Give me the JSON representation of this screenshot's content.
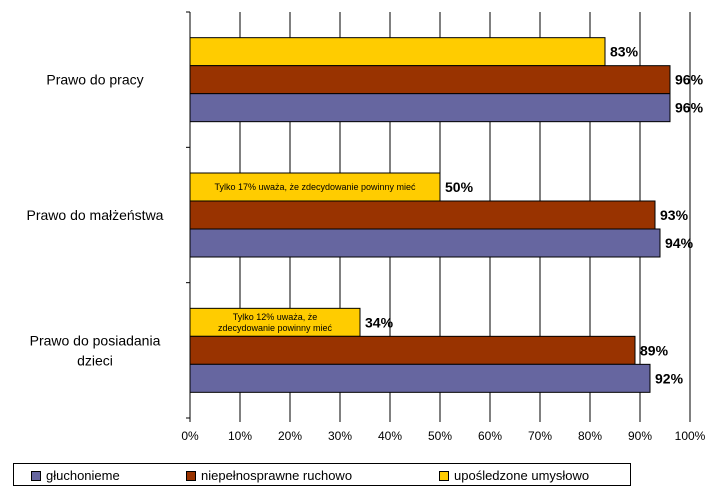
{
  "chart_data": {
    "type": "bar",
    "orientation": "horizontal",
    "categories": [
      "Prawo do pracy",
      "Prawo do małżeństwa",
      "Prawo do posiadania dzieci"
    ],
    "category_lines": [
      [
        "Prawo do pracy"
      ],
      [
        "Prawo do małżeństwa"
      ],
      [
        "Prawo do posiadania",
        "dzieci"
      ]
    ],
    "series": [
      {
        "name": "głuchonieme",
        "color": "#6666a0",
        "values": [
          96,
          94,
          92
        ],
        "labels": [
          "96%",
          "94%",
          "92%"
        ]
      },
      {
        "name": "niepełnosprawne ruchowo",
        "color": "#993300",
        "values": [
          96,
          93,
          89
        ],
        "labels": [
          "96%",
          "93%",
          "89%"
        ]
      },
      {
        "name": "upośledzone umysłowo",
        "color": "#ffcc00",
        "values": [
          83,
          50,
          34
        ],
        "labels": [
          "83%",
          "50%",
          "34%"
        ]
      }
    ],
    "annotations": [
      {
        "category": "Prawo do małżeństwa",
        "series": "upośledzone umysłowo",
        "lines": [
          "Tylko 17% uważa, że zdecydowanie powinny mieć"
        ]
      },
      {
        "category": "Prawo do posiadania dzieci",
        "series": "upośledzone umysłowo",
        "lines": [
          "Tylko 12% uważa, że",
          "zdecydowanie powinny mieć"
        ]
      }
    ],
    "xlim": [
      0,
      100
    ],
    "xticks": [
      "0%",
      "10%",
      "20%",
      "30%",
      "40%",
      "50%",
      "60%",
      "70%",
      "80%",
      "90%",
      "100%"
    ],
    "grid": true,
    "legend_position": "bottom"
  }
}
